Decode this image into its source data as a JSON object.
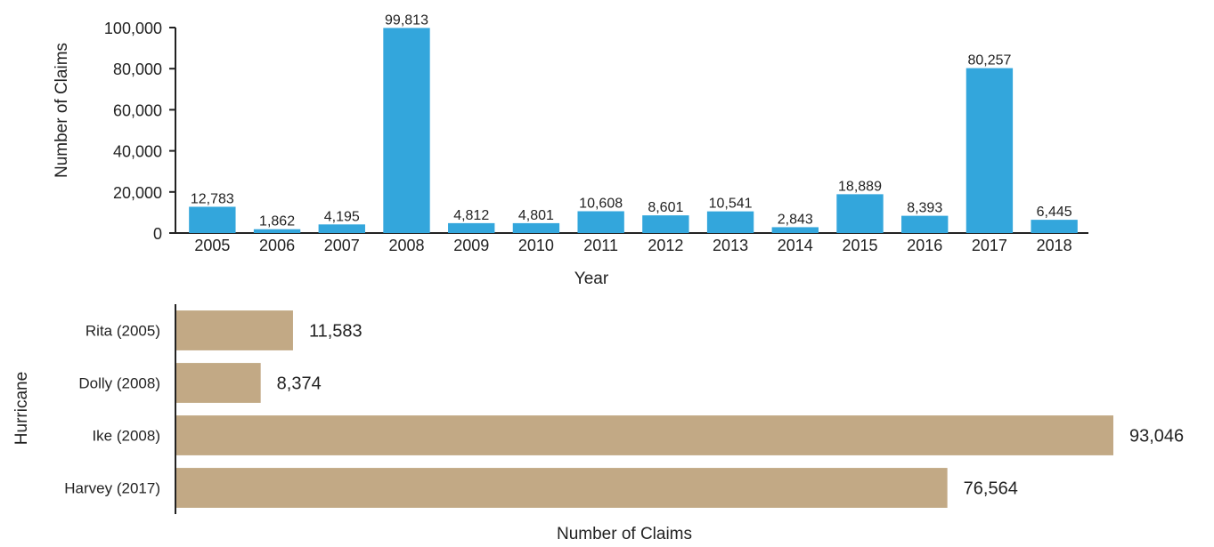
{
  "chart_data": [
    {
      "type": "bar",
      "xlabel": "Year",
      "ylabel": "Number of Claims",
      "categories": [
        "2005",
        "2006",
        "2007",
        "2008",
        "2009",
        "2010",
        "2011",
        "2012",
        "2013",
        "2014",
        "2015",
        "2016",
        "2017",
        "2018"
      ],
      "values": [
        12783,
        1862,
        4195,
        99813,
        4812,
        4801,
        10608,
        8601,
        10541,
        2843,
        18889,
        8393,
        80257,
        6445
      ],
      "data_labels": [
        "12,783",
        "1,862",
        "4,195",
        "99,813",
        "4,812",
        "4,801",
        "10,608",
        "8,601",
        "10,541",
        "2,843",
        "18,889",
        "8,393",
        "80,257",
        "6,445"
      ],
      "yticks": [
        "0",
        "20,000",
        "40,000",
        "60,000",
        "80,000",
        "100,000"
      ],
      "ytick_values": [
        0,
        20000,
        40000,
        60000,
        80000,
        100000
      ],
      "ylim": [
        0,
        100000
      ],
      "grid": false,
      "color": "#33a6dc"
    },
    {
      "type": "bar",
      "orientation": "horizontal",
      "xlabel": "Number of Claims",
      "ylabel": "Hurricane",
      "categories": [
        "Rita (2005)",
        "Dolly (2008)",
        "Ike (2008)",
        "Harvey (2017)"
      ],
      "values": [
        11583,
        8374,
        93046,
        76564
      ],
      "data_labels": [
        "11,583",
        "8,374",
        "93,046",
        "76,564"
      ],
      "xlim": [
        0,
        93046
      ],
      "grid": false,
      "color": "#c2a985"
    }
  ]
}
